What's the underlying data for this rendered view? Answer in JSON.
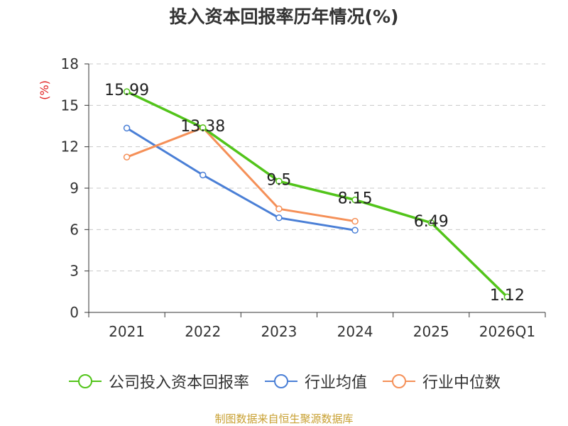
{
  "chart_data": {
    "type": "line",
    "title": "投入资本回报率历年情况(%)",
    "ylabel": "(%)",
    "categories": [
      "2021",
      "2022",
      "2023",
      "2024",
      "2025",
      "2026Q1"
    ],
    "ylim": [
      0,
      18
    ],
    "yticks": [
      0,
      3,
      6,
      9,
      12,
      15,
      18
    ],
    "grid": true,
    "legend_position": "bottom",
    "series": [
      {
        "name": "公司投入资本回报率",
        "color": "#52c41a",
        "values": [
          15.99,
          13.38,
          9.5,
          8.15,
          6.49,
          1.12
        ],
        "data_labels": [
          "15.99",
          "13.38",
          "9.5",
          "8.15",
          "6.49",
          "1.12"
        ]
      },
      {
        "name": "行业均值",
        "color": "#4a7fd6",
        "values": [
          13.35,
          9.95,
          6.85,
          5.95,
          null,
          null
        ]
      },
      {
        "name": "行业中位数",
        "color": "#f59058",
        "values": [
          11.25,
          13.38,
          7.5,
          6.6,
          null,
          null
        ]
      }
    ],
    "source": "制图数据来自恒生聚源数据库"
  }
}
